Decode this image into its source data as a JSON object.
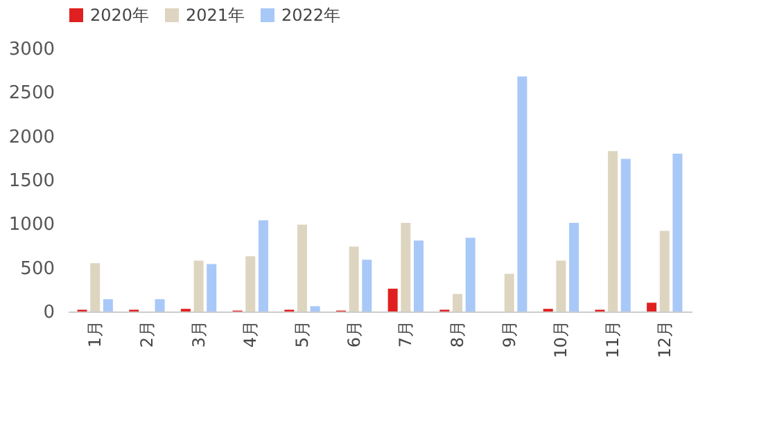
{
  "chart_data": {
    "type": "bar",
    "categories": [
      "1月",
      "2月",
      "3月",
      "4月",
      "5月",
      "6月",
      "7月",
      "8月",
      "9月",
      "10月",
      "11月",
      "12月"
    ],
    "series": [
      {
        "name": "2020年",
        "color": "#e02020",
        "values": [
          20,
          20,
          30,
          10,
          20,
          10,
          260,
          20,
          null,
          30,
          20,
          100
        ]
      },
      {
        "name": "2021年",
        "color": "#ddd5c0",
        "values": [
          550,
          null,
          580,
          630,
          990,
          740,
          1010,
          200,
          430,
          580,
          1830,
          920
        ]
      },
      {
        "name": "2022年",
        "color": "#a8c8f8",
        "values": [
          140,
          140,
          540,
          1040,
          60,
          590,
          810,
          840,
          2680,
          1010,
          1740,
          1800
        ]
      }
    ],
    "ylim": [
      0,
      3000
    ],
    "yticks": [
      0,
      500,
      1000,
      1500,
      2000,
      2500,
      3000
    ],
    "grid": false,
    "legend": "top"
  }
}
